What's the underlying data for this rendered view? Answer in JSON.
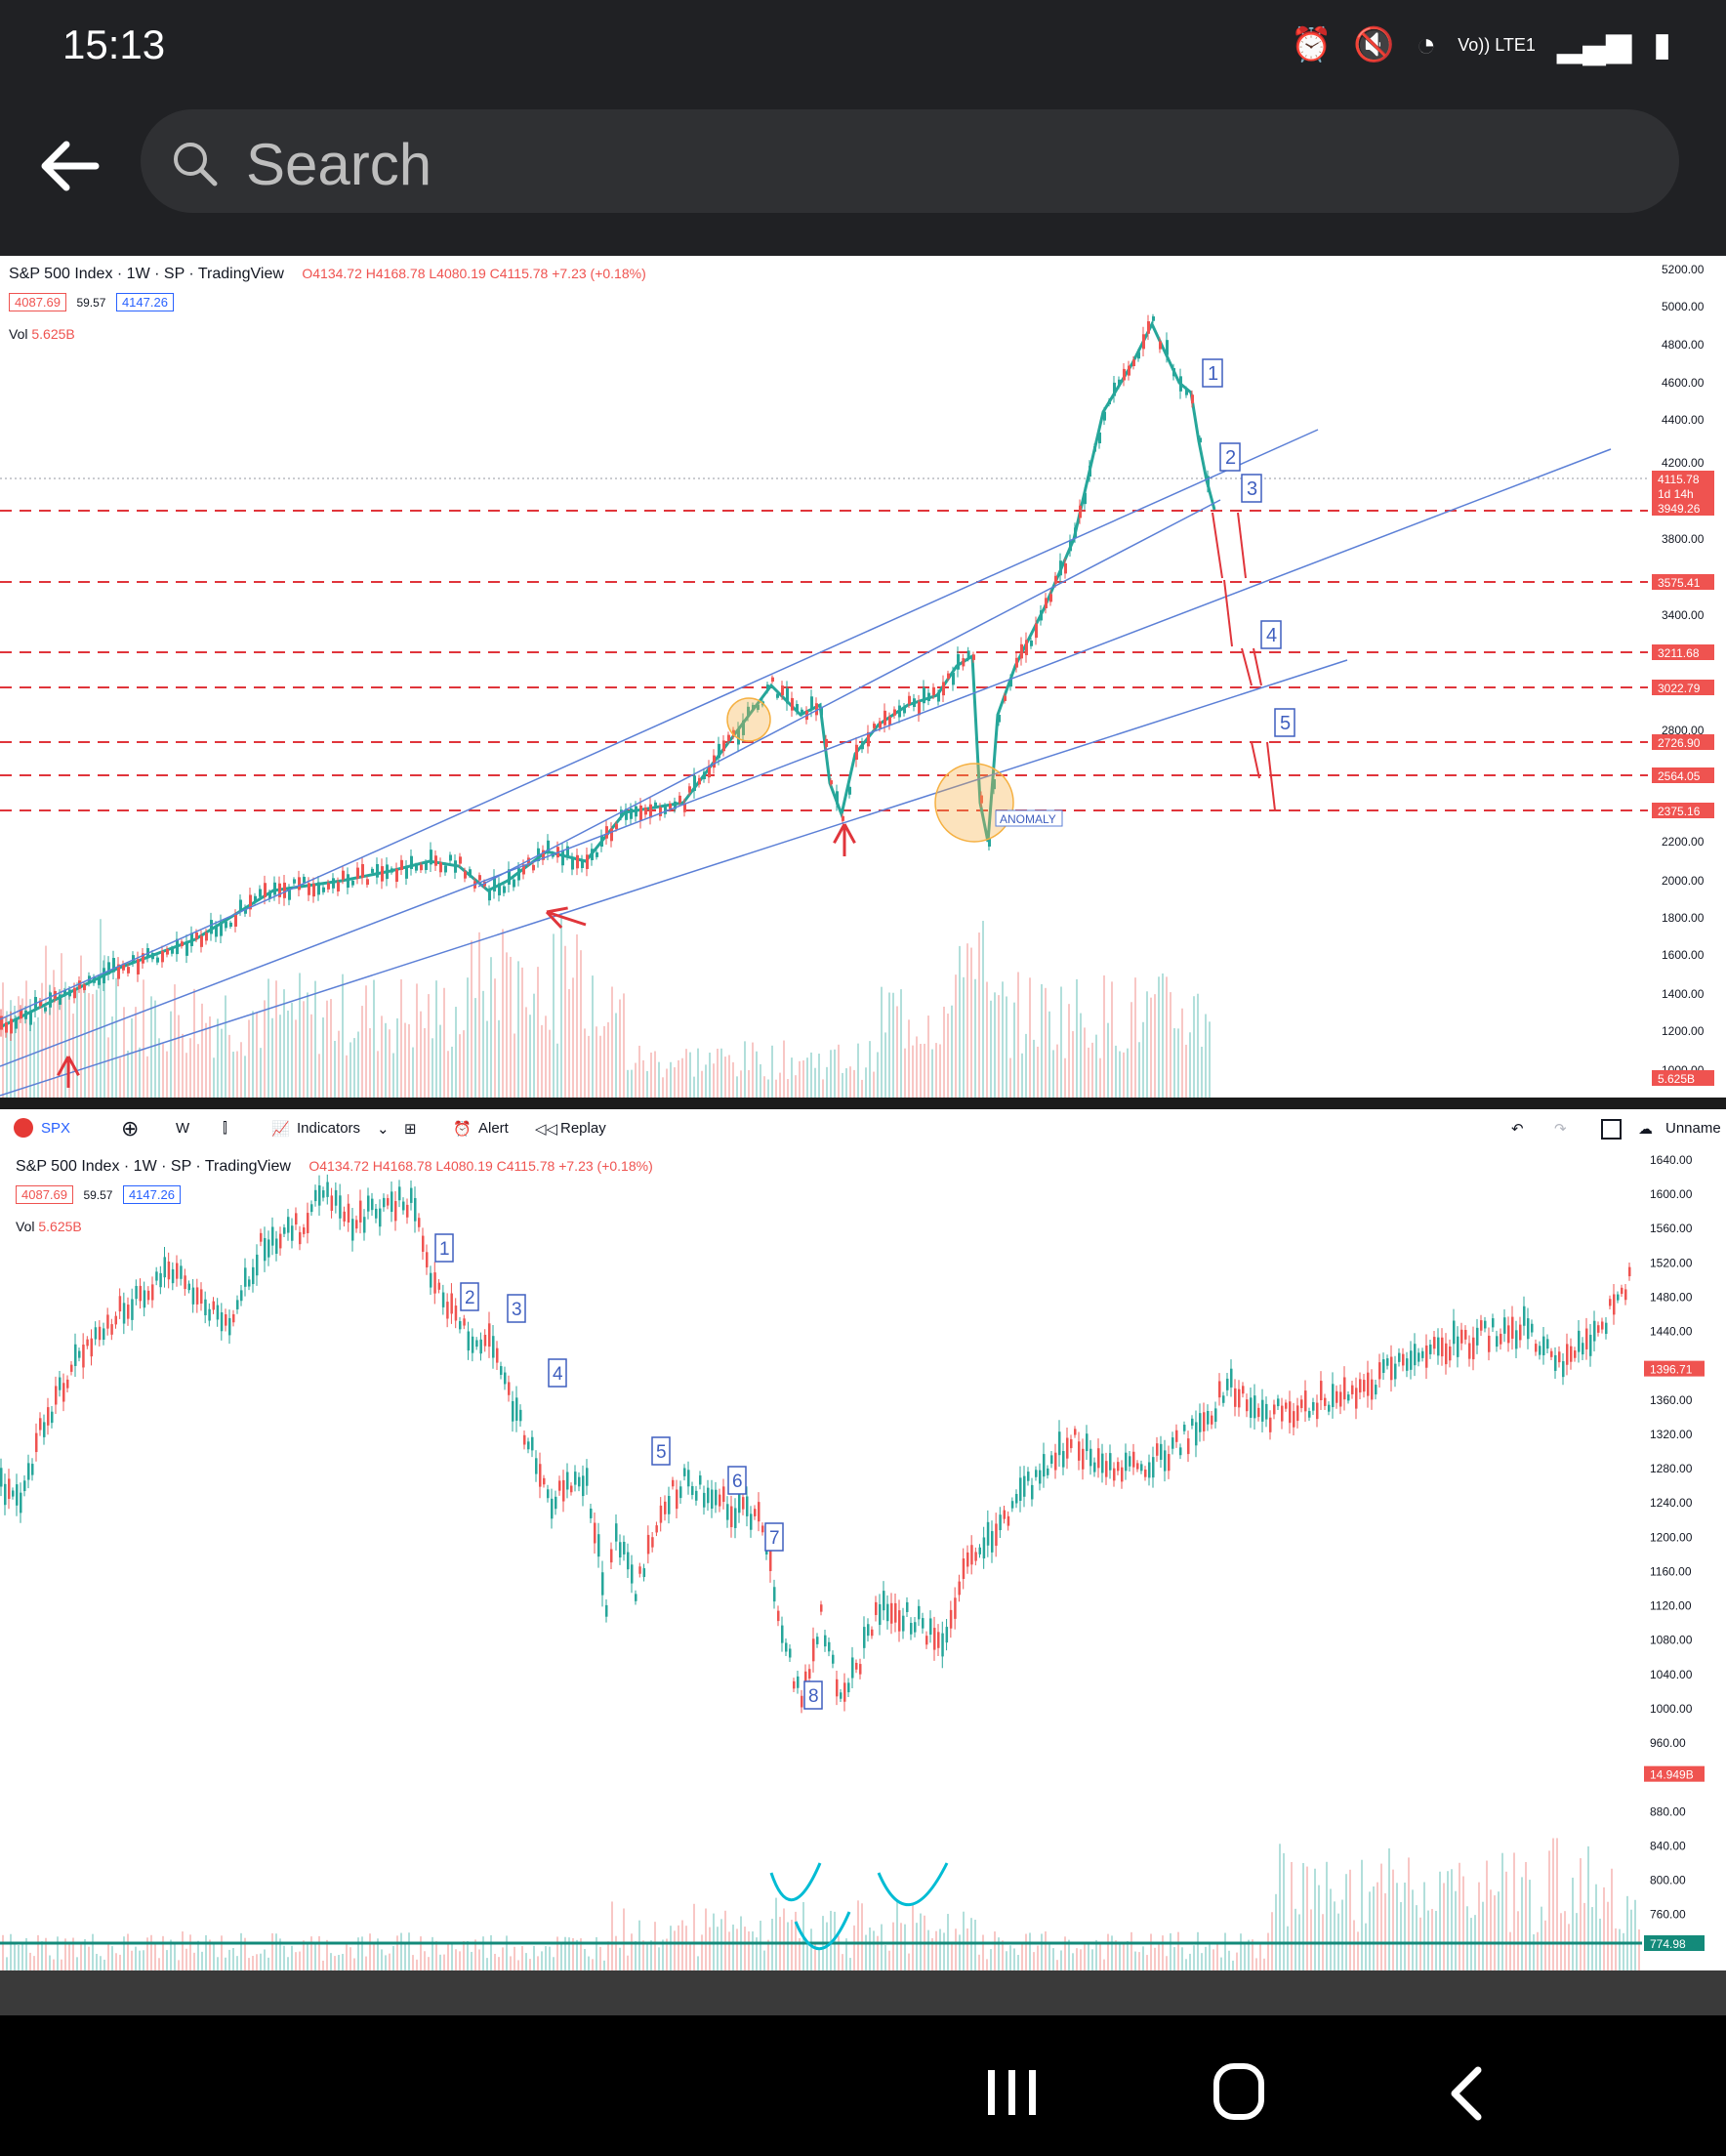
{
  "status_bar": {
    "time": "15:13",
    "network": "Vo)) LTE1"
  },
  "search": {
    "placeholder": "Search"
  },
  "top_chart": {
    "title": "S&P 500 Index · 1W · SP · TradingView",
    "ohlc": "O4134.72 H4168.78 L4080.19 C4115.78 +7.23 (+0.18%)",
    "bid": "4087.69",
    "spread": "59.57",
    "ask": "4147.26",
    "volume_label": "Vol",
    "volume_value": "5.625B",
    "anomaly_label": "ANOMALY",
    "wave_labels": [
      "1",
      "2",
      "3",
      "4",
      "5"
    ],
    "price_axis": [
      "5200.00",
      "5000.00",
      "4800.00",
      "4600.00",
      "4400.00",
      "4200.00",
      "3800.00",
      "3400.00",
      "2800.00",
      "2200.00",
      "2000.00",
      "1800.00",
      "1600.00",
      "1400.00",
      "1200.00",
      "1000.00"
    ],
    "price_badges": [
      "4115.78",
      "1d 14h",
      "3949.26",
      "3575.41",
      "3211.68",
      "3022.79",
      "2726.90",
      "2564.05",
      "2375.16",
      "5.625B"
    ]
  },
  "toolbar": {
    "symbol": "SPX",
    "interval": "W",
    "indicators": "Indicators",
    "alert": "Alert",
    "replay": "Replay",
    "layout_name": "Unname"
  },
  "bottom_chart": {
    "title": "S&P 500 Index · 1W · SP · TradingView",
    "ohlc": "O4134.72 H4168.78 L4080.19 C4115.78 +7.23 (+0.18%)",
    "bid": "4087.69",
    "spread": "59.57",
    "ask": "4147.26",
    "volume_label": "Vol",
    "volume_value": "5.625B",
    "wave_labels": [
      "1",
      "2",
      "3",
      "4",
      "5",
      "6",
      "7",
      "8"
    ],
    "price_axis": [
      "1640.00",
      "1600.00",
      "1560.00",
      "1520.00",
      "1480.00",
      "1440.00",
      "1360.00",
      "1320.00",
      "1280.00",
      "1240.00",
      "1200.00",
      "1160.00",
      "1120.00",
      "1080.00",
      "1040.00",
      "1000.00",
      "960.00",
      "880.00",
      "840.00",
      "800.00",
      "760.00"
    ],
    "price_badges": [
      "1396.71",
      "14.949B",
      "774.98"
    ]
  },
  "colors": {
    "up": "#26a69a",
    "down": "#ef5350",
    "trend": "#5b7fd6",
    "level": "#e0353b",
    "annotation": "#00bcd4",
    "highlight": "#f5b041"
  }
}
